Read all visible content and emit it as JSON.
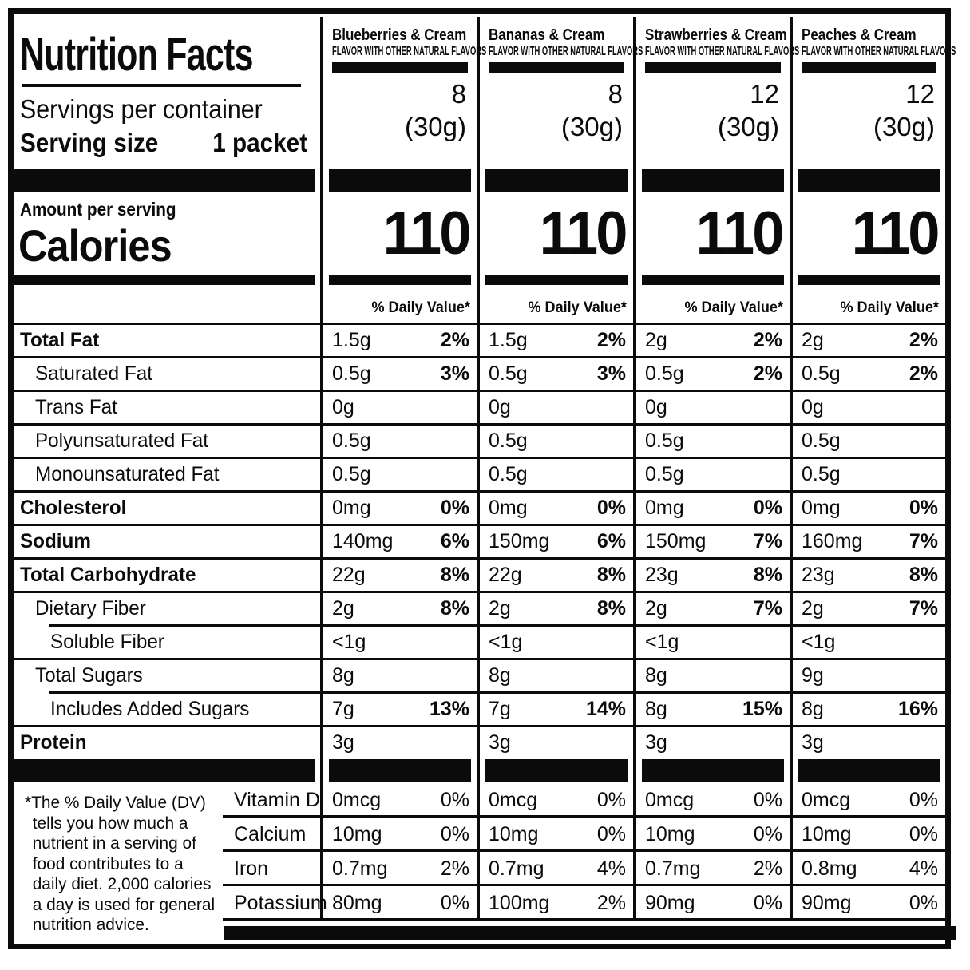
{
  "header": {
    "title": "Nutrition Facts",
    "servings_per_container_label": "Servings per container",
    "serving_size_label": "Serving size",
    "serving_size_value": "1 packet",
    "amount_per_serving_label": "Amount per serving",
    "calories_label": "Calories",
    "daily_value_header": "% Daily Value*"
  },
  "columns": [
    {
      "name": "Blueberries & Cream",
      "tagline": "FLAVOR WITH OTHER NATURAL FLAVORS",
      "servings": "8",
      "serving_weight": "(30g)",
      "calories": "110"
    },
    {
      "name": "Bananas & Cream",
      "tagline": "FLAVOR WITH OTHER NATURAL FLAVORS",
      "servings": "8",
      "serving_weight": "(30g)",
      "calories": "110"
    },
    {
      "name": "Strawberries & Cream",
      "tagline": "FLAVOR WITH OTHER NATURAL FLAVORS",
      "servings": "12",
      "serving_weight": "(30g)",
      "calories": "110"
    },
    {
      "name": "Peaches & Cream",
      "tagline": "FLAVOR WITH OTHER NATURAL FLAVORS",
      "servings": "12",
      "serving_weight": "(30g)",
      "calories": "110"
    }
  ],
  "nutrient_rows": [
    {
      "id": "total-fat",
      "label": "Total Fat",
      "bold": true,
      "indent": 0,
      "values": [
        {
          "amount": "1.5g",
          "dv": "2%"
        },
        {
          "amount": "1.5g",
          "dv": "2%"
        },
        {
          "amount": "2g",
          "dv": "2%"
        },
        {
          "amount": "2g",
          "dv": "2%"
        }
      ]
    },
    {
      "id": "saturated-fat",
      "label": "Saturated Fat",
      "bold": false,
      "indent": 1,
      "values": [
        {
          "amount": "0.5g",
          "dv": "3%"
        },
        {
          "amount": "0.5g",
          "dv": "3%"
        },
        {
          "amount": "0.5g",
          "dv": "2%"
        },
        {
          "amount": "0.5g",
          "dv": "2%"
        }
      ]
    },
    {
      "id": "trans-fat",
      "label": "Trans Fat",
      "bold": false,
      "indent": 1,
      "values": [
        {
          "amount": "0g",
          "dv": ""
        },
        {
          "amount": "0g",
          "dv": ""
        },
        {
          "amount": "0g",
          "dv": ""
        },
        {
          "amount": "0g",
          "dv": ""
        }
      ]
    },
    {
      "id": "polyunsaturated-fat",
      "label": "Polyunsaturated Fat",
      "bold": false,
      "indent": 1,
      "values": [
        {
          "amount": "0.5g",
          "dv": ""
        },
        {
          "amount": "0.5g",
          "dv": ""
        },
        {
          "amount": "0.5g",
          "dv": ""
        },
        {
          "amount": "0.5g",
          "dv": ""
        }
      ]
    },
    {
      "id": "monounsaturated-fat",
      "label": "Monounsaturated Fat",
      "bold": false,
      "indent": 1,
      "values": [
        {
          "amount": "0.5g",
          "dv": ""
        },
        {
          "amount": "0.5g",
          "dv": ""
        },
        {
          "amount": "0.5g",
          "dv": ""
        },
        {
          "amount": "0.5g",
          "dv": ""
        }
      ]
    },
    {
      "id": "cholesterol",
      "label": "Cholesterol",
      "bold": true,
      "indent": 0,
      "values": [
        {
          "amount": "0mg",
          "dv": "0%"
        },
        {
          "amount": "0mg",
          "dv": "0%"
        },
        {
          "amount": "0mg",
          "dv": "0%"
        },
        {
          "amount": "0mg",
          "dv": "0%"
        }
      ]
    },
    {
      "id": "sodium",
      "label": "Sodium",
      "bold": true,
      "indent": 0,
      "values": [
        {
          "amount": "140mg",
          "dv": "6%"
        },
        {
          "amount": "150mg",
          "dv": "6%"
        },
        {
          "amount": "150mg",
          "dv": "7%"
        },
        {
          "amount": "160mg",
          "dv": "7%"
        }
      ]
    },
    {
      "id": "total-carbohydrate",
      "label": "Total Carbohydrate",
      "bold": true,
      "indent": 0,
      "values": [
        {
          "amount": "22g",
          "dv": "8%"
        },
        {
          "amount": "22g",
          "dv": "8%"
        },
        {
          "amount": "23g",
          "dv": "8%"
        },
        {
          "amount": "23g",
          "dv": "8%"
        }
      ]
    },
    {
      "id": "dietary-fiber",
      "label": "Dietary Fiber",
      "bold": false,
      "indent": 1,
      "values": [
        {
          "amount": "2g",
          "dv": "8%"
        },
        {
          "amount": "2g",
          "dv": "8%"
        },
        {
          "amount": "2g",
          "dv": "7%"
        },
        {
          "amount": "2g",
          "dv": "7%"
        }
      ]
    },
    {
      "id": "soluble-fiber",
      "label": "Soluble Fiber",
      "bold": false,
      "indent": 2,
      "sep": "indent",
      "values": [
        {
          "amount": "<1g",
          "dv": ""
        },
        {
          "amount": "<1g",
          "dv": ""
        },
        {
          "amount": "<1g",
          "dv": ""
        },
        {
          "amount": "<1g",
          "dv": ""
        }
      ]
    },
    {
      "id": "total-sugars",
      "label": "Total Sugars",
      "bold": false,
      "indent": 1,
      "values": [
        {
          "amount": "8g",
          "dv": ""
        },
        {
          "amount": "8g",
          "dv": ""
        },
        {
          "amount": "8g",
          "dv": ""
        },
        {
          "amount": "9g",
          "dv": ""
        }
      ]
    },
    {
      "id": "includes-added-sugars",
      "label": "Includes Added Sugars",
      "bold": false,
      "indent": 2,
      "sep": "indent",
      "values": [
        {
          "amount": "7g",
          "dv": "13%"
        },
        {
          "amount": "7g",
          "dv": "14%"
        },
        {
          "amount": "8g",
          "dv": "15%"
        },
        {
          "amount": "8g",
          "dv": "16%"
        }
      ]
    },
    {
      "id": "protein",
      "label": "Protein",
      "bold": true,
      "indent": 0,
      "values": [
        {
          "amount": "3g",
          "dv": ""
        },
        {
          "amount": "3g",
          "dv": ""
        },
        {
          "amount": "3g",
          "dv": ""
        },
        {
          "amount": "3g",
          "dv": ""
        }
      ]
    }
  ],
  "vitamin_rows": [
    {
      "id": "vitamin-d",
      "label": "Vitamin D",
      "values": [
        {
          "amount": "0mcg",
          "dv": "0%"
        },
        {
          "amount": "0mcg",
          "dv": "0%"
        },
        {
          "amount": "0mcg",
          "dv": "0%"
        },
        {
          "amount": "0mcg",
          "dv": "0%"
        }
      ]
    },
    {
      "id": "calcium",
      "label": "Calcium",
      "values": [
        {
          "amount": "10mg",
          "dv": "0%"
        },
        {
          "amount": "10mg",
          "dv": "0%"
        },
        {
          "amount": "10mg",
          "dv": "0%"
        },
        {
          "amount": "10mg",
          "dv": "0%"
        }
      ]
    },
    {
      "id": "iron",
      "label": "Iron",
      "values": [
        {
          "amount": "0.7mg",
          "dv": "2%"
        },
        {
          "amount": "0.7mg",
          "dv": "4%"
        },
        {
          "amount": "0.7mg",
          "dv": "2%"
        },
        {
          "amount": "0.8mg",
          "dv": "4%"
        }
      ]
    },
    {
      "id": "potassium",
      "label": "Potassium",
      "values": [
        {
          "amount": "80mg",
          "dv": "0%"
        },
        {
          "amount": "100mg",
          "dv": "2%"
        },
        {
          "amount": "90mg",
          "dv": "0%"
        },
        {
          "amount": "90mg",
          "dv": "0%"
        }
      ]
    }
  ],
  "footnote": "*The % Daily Value (DV) tells you how much a nutrient in a serving of food contributes to a daily diet. 2,000 calories a day is used for general nutrition advice.",
  "colors": {
    "ink": "#0b0b0b",
    "background": "#ffffff"
  }
}
